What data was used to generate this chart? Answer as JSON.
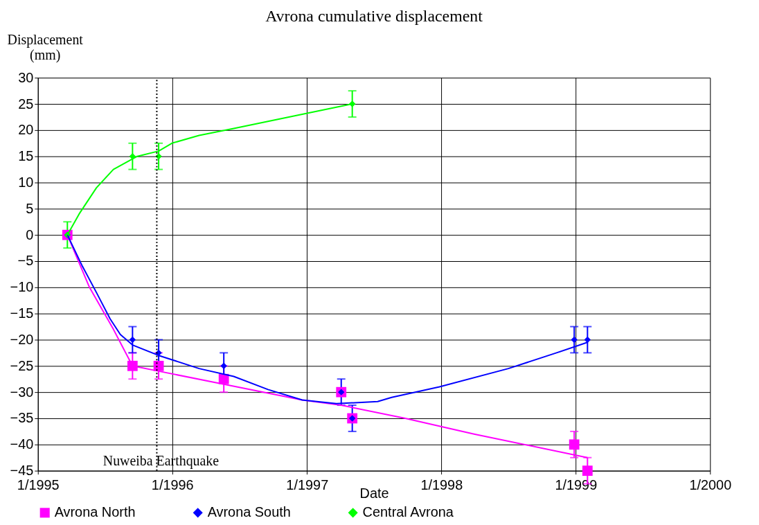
{
  "chart_data": {
    "type": "scatter",
    "title": "Avrona cumulative displacement",
    "xlabel": "Date",
    "ylabel": "Displacement (mm)",
    "xlim": [
      "1995-01-01",
      "2000-01-01"
    ],
    "xticks": [
      {
        "value": "1995-01-01",
        "label": "1/1995"
      },
      {
        "value": "1996-01-01",
        "label": "1/1996"
      },
      {
        "value": "1997-01-01",
        "label": "1/1997"
      },
      {
        "value": "1998-01-01",
        "label": "1/1998"
      },
      {
        "value": "1999-01-01",
        "label": "1/1999"
      },
      {
        "value": "2000-01-01",
        "label": "1/2000"
      }
    ],
    "ylim": [
      -45,
      30
    ],
    "yticks": [
      -45,
      -40,
      -35,
      -30,
      -25,
      -20,
      -15,
      -10,
      -5,
      0,
      5,
      10,
      15,
      20,
      25,
      30
    ],
    "grid": true,
    "legend": "bottom",
    "ref_lines": [
      {
        "axis": "x",
        "value": "1995-11-20",
        "label": "Nuweiba Earthquake",
        "color": "#000000",
        "line_style": "dotted"
      }
    ],
    "series": [
      {
        "name": "Avrona North",
        "marker": "square",
        "color": "#ff00ff",
        "x": [
          "1995-03-22",
          "1995-09-15",
          "1995-11-25",
          "1996-05-20",
          "1997-04-04",
          "1997-05-04",
          "1998-12-28",
          "1999-02-02"
        ],
        "values": [
          0,
          -25,
          -25,
          -27.5,
          -30,
          -35,
          -40,
          -45
        ],
        "errors": [
          null,
          2.5,
          2.5,
          2.5,
          null,
          null,
          2.5,
          2.5
        ]
      },
      {
        "name": "Avrona South",
        "marker": "diamond",
        "color": "#0000ff",
        "x": [
          "1995-03-22",
          "1995-09-15",
          "1995-11-25",
          "1996-05-20",
          "1997-04-04",
          "1997-05-04",
          "1998-12-28",
          "1999-02-02"
        ],
        "values": [
          0,
          -20,
          -22.5,
          -25,
          -30,
          -35,
          -20,
          -20
        ],
        "errors": [
          null,
          2.5,
          2.5,
          2.5,
          2.5,
          2.5,
          2.5,
          2.5
        ]
      },
      {
        "name": "Central Avrona",
        "marker": "diamond",
        "color": "#00ff00",
        "x": [
          "1995-03-22",
          "1995-09-15",
          "1995-11-25",
          "1997-05-04"
        ],
        "values": [
          0,
          15,
          15,
          25
        ],
        "errors": [
          2.5,
          2.5,
          2.5,
          2.5
        ]
      },
      {
        "type": "line",
        "color": "#ff00ff",
        "x": [
          "1995-03-22",
          "1995-05-21",
          "1995-07-25",
          "1995-09-15",
          "1995-11-25",
          "1996-05-20",
          "1996-12-19",
          "1997-04-04",
          "1997-09-25",
          "1998-03-31",
          "1999-02-02"
        ],
        "values": [
          0,
          -10,
          -18,
          -25,
          -26,
          -28.5,
          -31.5,
          -32.5,
          -35,
          -38,
          -42.5
        ]
      },
      {
        "type": "line",
        "color": "#0000ff",
        "x": [
          "1995-03-22",
          "1995-05-02",
          "1995-06-09",
          "1995-07-16",
          "1995-08-13",
          "1995-09-15",
          "1995-11-25",
          "1996-03-14",
          "1996-06-16",
          "1996-09-17",
          "1996-12-19",
          "1997-03-22",
          "1997-07-12",
          "1997-08-19",
          "1997-12-27",
          "1998-07-02",
          "1998-11-10",
          "1999-02-02"
        ],
        "values": [
          0,
          -6,
          -11,
          -16,
          -19,
          -21,
          -23,
          -25.5,
          -27,
          -29.5,
          -31.5,
          -32.2,
          -31.8,
          -31,
          -29,
          -25.5,
          -22.5,
          -20.5
        ]
      },
      {
        "type": "line",
        "color": "#00ff00",
        "x": [
          "1995-03-22",
          "1995-04-23",
          "1995-06-09",
          "1995-07-25",
          "1995-09-28",
          "1995-11-25",
          "1995-12-31",
          "1996-03-14",
          "1996-06-16",
          "1997-05-04"
        ],
        "values": [
          0,
          4,
          9,
          12.5,
          15,
          16,
          17.5,
          19,
          20.3,
          25
        ]
      }
    ]
  }
}
